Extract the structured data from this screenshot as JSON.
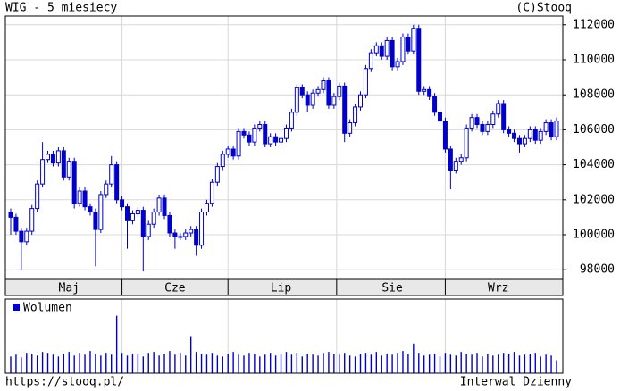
{
  "chart_data": {
    "type": "candlestick",
    "title": "WIG - 5 miesiecy",
    "source": "(C)Stooq",
    "url": "https://stooq.pl/",
    "footer": "Interwal Dzienny",
    "categories": [
      null,
      null,
      null,
      null,
      null,
      null,
      null,
      null,
      null,
      null,
      null,
      "Maj",
      null,
      null,
      null,
      null,
      null,
      null,
      null,
      null,
      null,
      null,
      null,
      null,
      null,
      null,
      null,
      null,
      null,
      null,
      null,
      "Cze",
      null,
      null,
      null,
      null,
      null,
      null,
      null,
      null,
      null,
      null,
      null,
      null,
      null,
      null,
      null,
      null,
      null,
      null,
      null,
      "Lip",
      null,
      null,
      null,
      null,
      null,
      null,
      null,
      null,
      null,
      null,
      null,
      null,
      null,
      null,
      null,
      null,
      null,
      null,
      null,
      null,
      "Sie",
      null,
      null,
      null,
      null,
      null,
      null,
      null,
      null,
      null,
      null,
      null,
      null,
      null,
      null,
      null,
      null,
      null,
      null,
      null,
      "Wrz",
      null,
      null,
      null,
      null,
      null,
      null,
      null,
      null,
      null,
      null,
      null
    ],
    "open": [
      101300,
      101000,
      100200,
      99600,
      100200,
      101500,
      102900,
      104300,
      104600,
      104100,
      104800,
      103300,
      104200,
      101800,
      102500,
      101600,
      101300,
      100300,
      102300,
      102900,
      104000,
      102000,
      101600,
      100800,
      101200,
      101400,
      99900,
      100600,
      101300,
      102100,
      101100,
      100100,
      99900,
      99900,
      100100,
      100300,
      99400,
      101300,
      101800,
      103000,
      103900,
      104600,
      104900,
      104500,
      105900,
      105700,
      105300,
      106100,
      106300,
      105200,
      105600,
      105300,
      105500,
      106100,
      107000,
      108400,
      108000,
      107400,
      108100,
      108300,
      108800,
      107400,
      107900,
      108500,
      105800,
      106400,
      107300,
      108000,
      109500,
      110400,
      110800,
      110200,
      111100,
      109600,
      109900,
      111300,
      110500,
      111800,
      108200,
      108300,
      107900,
      107000,
      106500,
      104900,
      103700,
      104200,
      104400,
      106100,
      106700,
      106300,
      105900,
      106300,
      106900,
      107500,
      106000,
      105800,
      105500,
      105200,
      105500,
      106000,
      105400,
      105900,
      106400,
      105600
    ],
    "high": [
      101500,
      101200,
      100400,
      100400,
      101700,
      103100,
      105300,
      104800,
      104800,
      105000,
      105000,
      104400,
      104400,
      102700,
      102700,
      101800,
      101500,
      102500,
      103100,
      104500,
      104200,
      102200,
      101800,
      101400,
      101600,
      101600,
      100800,
      101500,
      102300,
      102300,
      101300,
      100300,
      100100,
      100300,
      100500,
      100500,
      101500,
      102000,
      103200,
      104100,
      104800,
      105100,
      105100,
      106100,
      106100,
      105900,
      106300,
      106500,
      106500,
      105800,
      105800,
      105700,
      106300,
      107200,
      108600,
      108600,
      108200,
      108300,
      108500,
      109000,
      109000,
      108100,
      108700,
      108700,
      106600,
      107500,
      108200,
      109700,
      110600,
      111000,
      111000,
      111300,
      111300,
      110100,
      111500,
      111500,
      112000,
      112000,
      108500,
      108500,
      108100,
      107200,
      106700,
      105100,
      104400,
      104600,
      106300,
      106900,
      106900,
      106500,
      106500,
      107100,
      107700,
      107700,
      106200,
      106000,
      105700,
      105700,
      106200,
      106200,
      106100,
      106600,
      106600,
      106700
    ],
    "low": [
      100000,
      100000,
      98000,
      99400,
      100000,
      101300,
      102700,
      104100,
      103900,
      103900,
      103100,
      103100,
      101500,
      101600,
      101400,
      101100,
      98200,
      100100,
      102100,
      102700,
      101800,
      101400,
      99200,
      100600,
      101000,
      97900,
      99700,
      100400,
      101100,
      100900,
      99900,
      99200,
      99700,
      99700,
      99900,
      98800,
      99200,
      101100,
      101600,
      102800,
      103700,
      104400,
      104300,
      104300,
      105500,
      105100,
      105100,
      105900,
      105000,
      105000,
      105100,
      105100,
      105300,
      105900,
      106800,
      107800,
      107000,
      107200,
      107900,
      108100,
      107200,
      107200,
      107700,
      105300,
      105600,
      106200,
      107100,
      107800,
      109300,
      110200,
      110000,
      110000,
      109400,
      109400,
      109700,
      110300,
      110300,
      108000,
      108000,
      107700,
      106800,
      106300,
      104700,
      102600,
      103500,
      104000,
      104200,
      105900,
      106100,
      105700,
      105700,
      106100,
      106700,
      105800,
      105600,
      105300,
      104700,
      105000,
      105300,
      105200,
      105200,
      105700,
      105400,
      105400
    ],
    "close": [
      101000,
      100200,
      99600,
      100200,
      101500,
      102900,
      104300,
      104600,
      104100,
      104800,
      103300,
      104200,
      101800,
      102500,
      101600,
      101300,
      100300,
      102300,
      102900,
      104000,
      102000,
      101600,
      100800,
      101200,
      101400,
      99900,
      100600,
      101300,
      102100,
      101100,
      100100,
      99900,
      99900,
      100100,
      100300,
      99400,
      101300,
      101800,
      103000,
      103900,
      104600,
      104900,
      104500,
      105900,
      105700,
      105300,
      106100,
      106300,
      105200,
      105600,
      105300,
      105500,
      106100,
      107000,
      108400,
      108000,
      107400,
      108100,
      108300,
      108800,
      107400,
      107900,
      108500,
      105800,
      106400,
      107300,
      108000,
      109500,
      110400,
      110800,
      110200,
      111100,
      109600,
      109900,
      111300,
      110500,
      111800,
      108200,
      108300,
      107900,
      107000,
      106500,
      104900,
      103700,
      104200,
      104400,
      106100,
      106700,
      106300,
      105900,
      106300,
      106900,
      107500,
      106000,
      105800,
      105500,
      105200,
      105500,
      106000,
      105400,
      105900,
      106400,
      105600,
      106500
    ],
    "color": "#0000cc",
    "ylim": [
      97500,
      112500
    ],
    "yticks": [
      98000,
      100000,
      102000,
      104000,
      106000,
      108000,
      110000,
      112000
    ],
    "grid": true,
    "volume_label": "Wolumen",
    "volume": [
      18,
      20,
      17,
      22,
      21,
      19,
      23,
      22,
      20,
      18,
      21,
      23,
      19,
      22,
      20,
      24,
      21,
      19,
      22,
      20,
      62,
      22,
      19,
      21,
      20,
      18,
      22,
      23,
      19,
      21,
      24,
      20,
      22,
      19,
      40,
      23,
      21,
      20,
      22,
      19,
      18,
      21,
      23,
      20,
      19,
      22,
      21,
      18,
      20,
      22,
      19,
      21,
      23,
      20,
      22,
      18,
      21,
      20,
      19,
      22,
      23,
      21,
      20,
      22,
      19,
      18,
      21,
      22,
      20,
      23,
      19,
      21,
      20,
      22,
      24,
      21,
      32,
      22,
      19,
      20,
      21,
      18,
      22,
      20,
      19,
      23,
      21,
      20,
      22,
      18,
      21,
      19,
      20,
      22,
      21,
      23,
      19,
      20,
      21,
      22,
      18,
      20,
      19,
      14
    ],
    "volume_ylim": [
      0,
      80
    ]
  }
}
